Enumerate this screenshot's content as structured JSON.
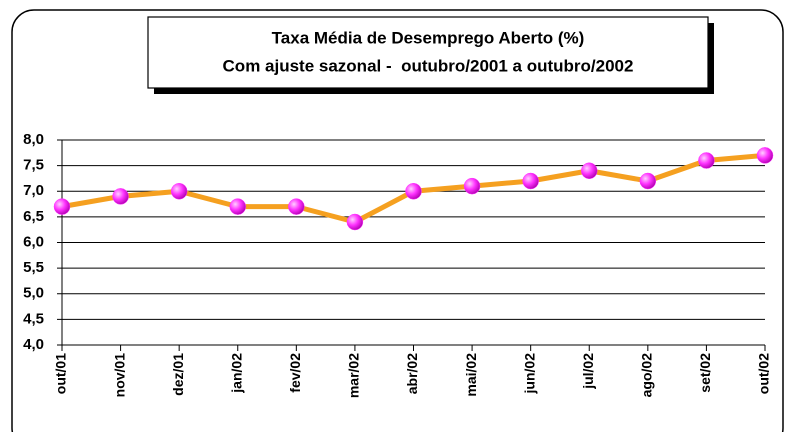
{
  "chart_data": {
    "type": "line",
    "title": "Taxa Média de Desemprego Aberto (%)",
    "subtitle": "Com ajuste sazonal -  outubro/2001 a outubro/2002",
    "categories": [
      "out/01",
      "nov/01",
      "dez/01",
      "jan/02",
      "fev/02",
      "mar/02",
      "abr/02",
      "mai/02",
      "jun/02",
      "jul/02",
      "ago/02",
      "set/02",
      "out/02"
    ],
    "values": [
      6.7,
      6.9,
      7.0,
      6.7,
      6.7,
      6.4,
      7.0,
      7.1,
      7.2,
      7.4,
      7.2,
      7.6,
      7.7
    ],
    "color": "#f5a020",
    "marker_color": "#ff33ff",
    "ylim": [
      4,
      8
    ],
    "yticks": [
      {
        "value": 4,
        "label": "4,0"
      },
      {
        "value": 4.5,
        "label": "4,5"
      },
      {
        "value": 5,
        "label": "5,0"
      },
      {
        "value": 5.5,
        "label": "5,5"
      },
      {
        "value": 6,
        "label": "6,0"
      },
      {
        "value": 6.5,
        "label": "6,5"
      },
      {
        "value": 7,
        "label": "7,0"
      },
      {
        "value": 7.5,
        "label": "7,5"
      },
      {
        "value": 8,
        "label": "8,0"
      }
    ],
    "grid": true
  }
}
